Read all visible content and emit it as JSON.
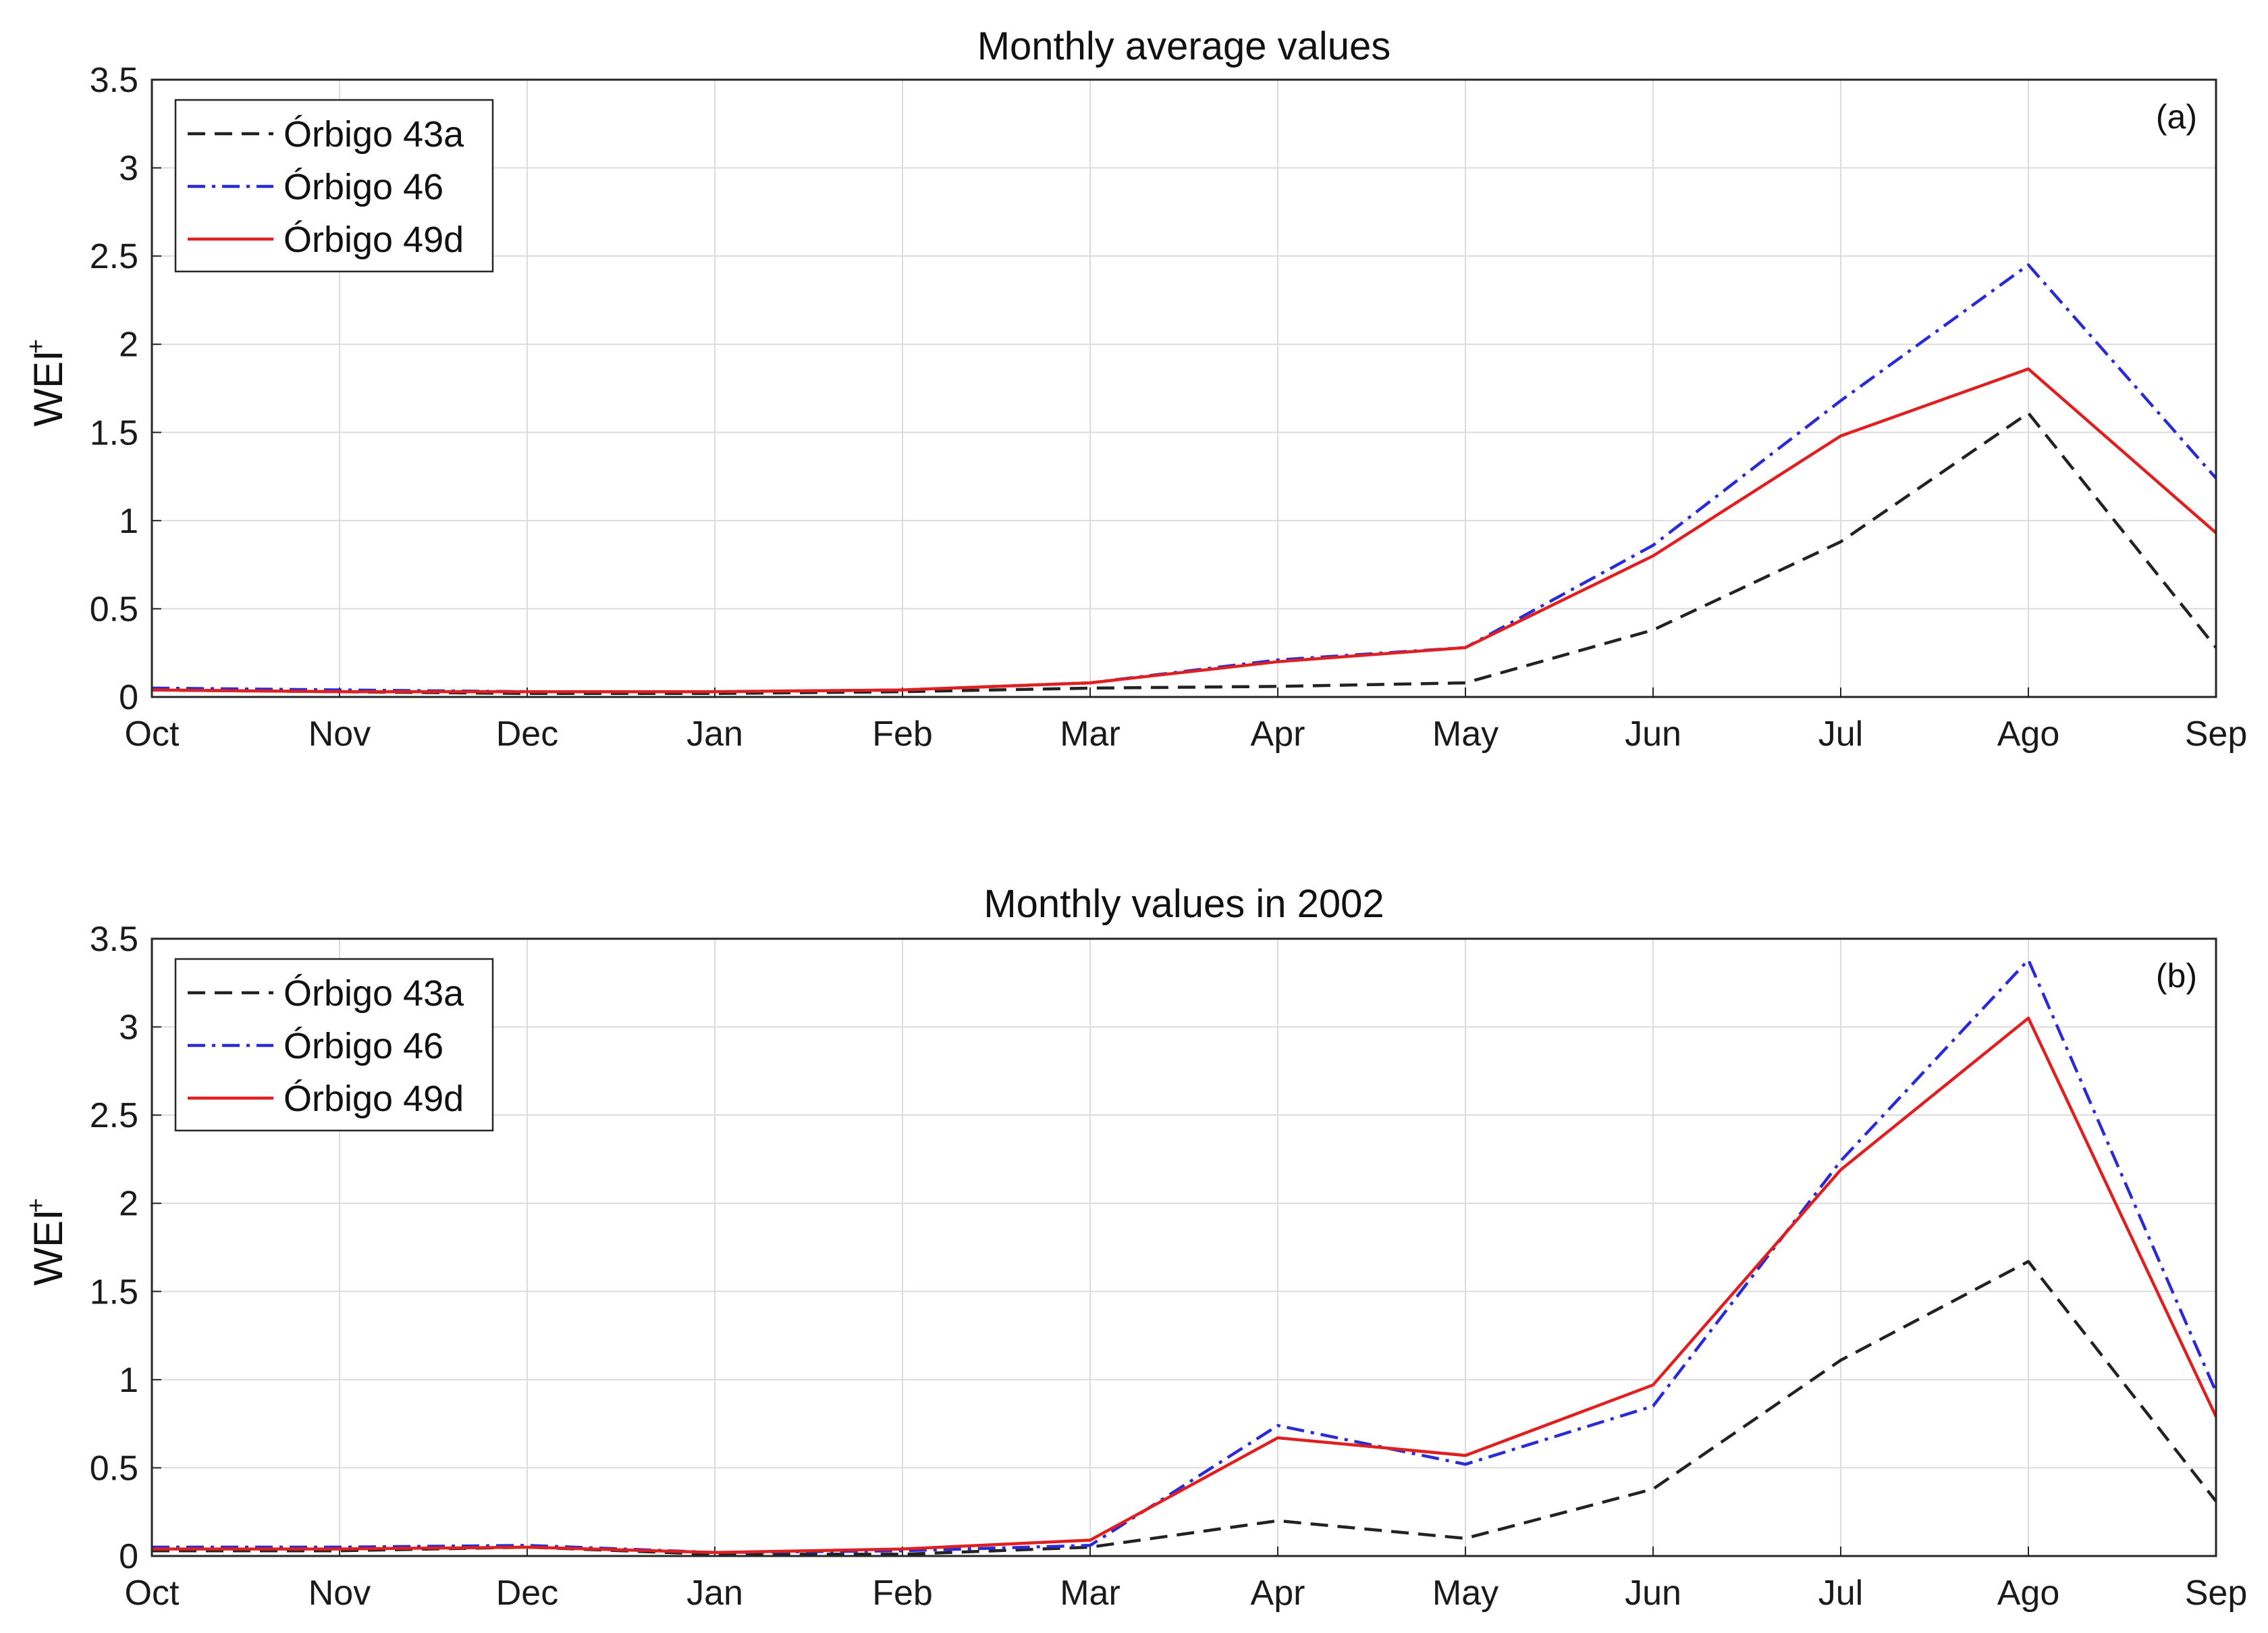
{
  "chart_data": [
    {
      "type": "line",
      "title": "Monthly average values",
      "panel_label": "(a)",
      "ylabel": "WEI",
      "ylabel_superscript": "+",
      "xlabel": "",
      "categories": [
        "Oct",
        "Nov",
        "Dec",
        "Jan",
        "Feb",
        "Mar",
        "Apr",
        "May",
        "Jun",
        "Jul",
        "Ago",
        "Sep"
      ],
      "ylim": [
        0,
        3.5
      ],
      "yticks": [
        "0",
        "0.5",
        "1",
        "1.5",
        "2",
        "2.5",
        "3",
        "3.5"
      ],
      "grid": true,
      "legend_position": "top-left",
      "series": [
        {
          "name": "Órbigo 43a",
          "style": "dashed",
          "color": "#222222",
          "values": [
            0.04,
            0.03,
            0.02,
            0.02,
            0.03,
            0.05,
            0.06,
            0.08,
            0.38,
            0.88,
            1.61,
            0.28
          ]
        },
        {
          "name": "Órbigo 46",
          "style": "dashdot",
          "color": "#2a2ad6",
          "values": [
            0.05,
            0.04,
            0.03,
            0.03,
            0.04,
            0.08,
            0.21,
            0.28,
            0.86,
            1.68,
            2.45,
            1.24
          ]
        },
        {
          "name": "Órbigo 49d",
          "style": "solid",
          "color": "#e02020",
          "values": [
            0.04,
            0.03,
            0.03,
            0.03,
            0.04,
            0.08,
            0.2,
            0.28,
            0.8,
            1.48,
            1.86,
            0.93
          ]
        }
      ]
    },
    {
      "type": "line",
      "title": "Monthly values in 2002",
      "panel_label": "(b)",
      "ylabel": "WEI",
      "ylabel_superscript": "+",
      "xlabel": "",
      "categories": [
        "Oct",
        "Nov",
        "Dec",
        "Jan",
        "Feb",
        "Mar",
        "Apr",
        "May",
        "Jun",
        "Jul",
        "Ago",
        "Sep"
      ],
      "ylim": [
        0,
        3.5
      ],
      "yticks": [
        "0",
        "0.5",
        "1",
        "1.5",
        "2",
        "2.5",
        "3",
        "3.5"
      ],
      "grid": true,
      "legend_position": "top-left",
      "series": [
        {
          "name": "Órbigo 43a",
          "style": "dashed",
          "color": "#222222",
          "values": [
            0.03,
            0.03,
            0.05,
            0.01,
            0.01,
            0.05,
            0.2,
            0.1,
            0.38,
            1.11,
            1.67,
            0.31
          ]
        },
        {
          "name": "Órbigo 46",
          "style": "dashdot",
          "color": "#2a2ad6",
          "values": [
            0.05,
            0.05,
            0.06,
            0.02,
            0.03,
            0.06,
            0.74,
            0.52,
            0.85,
            2.24,
            3.38,
            0.93
          ]
        },
        {
          "name": "Órbigo 49d",
          "style": "solid",
          "color": "#e02020",
          "values": [
            0.04,
            0.04,
            0.05,
            0.02,
            0.04,
            0.09,
            0.67,
            0.57,
            0.97,
            2.19,
            3.05,
            0.79
          ]
        }
      ]
    }
  ]
}
